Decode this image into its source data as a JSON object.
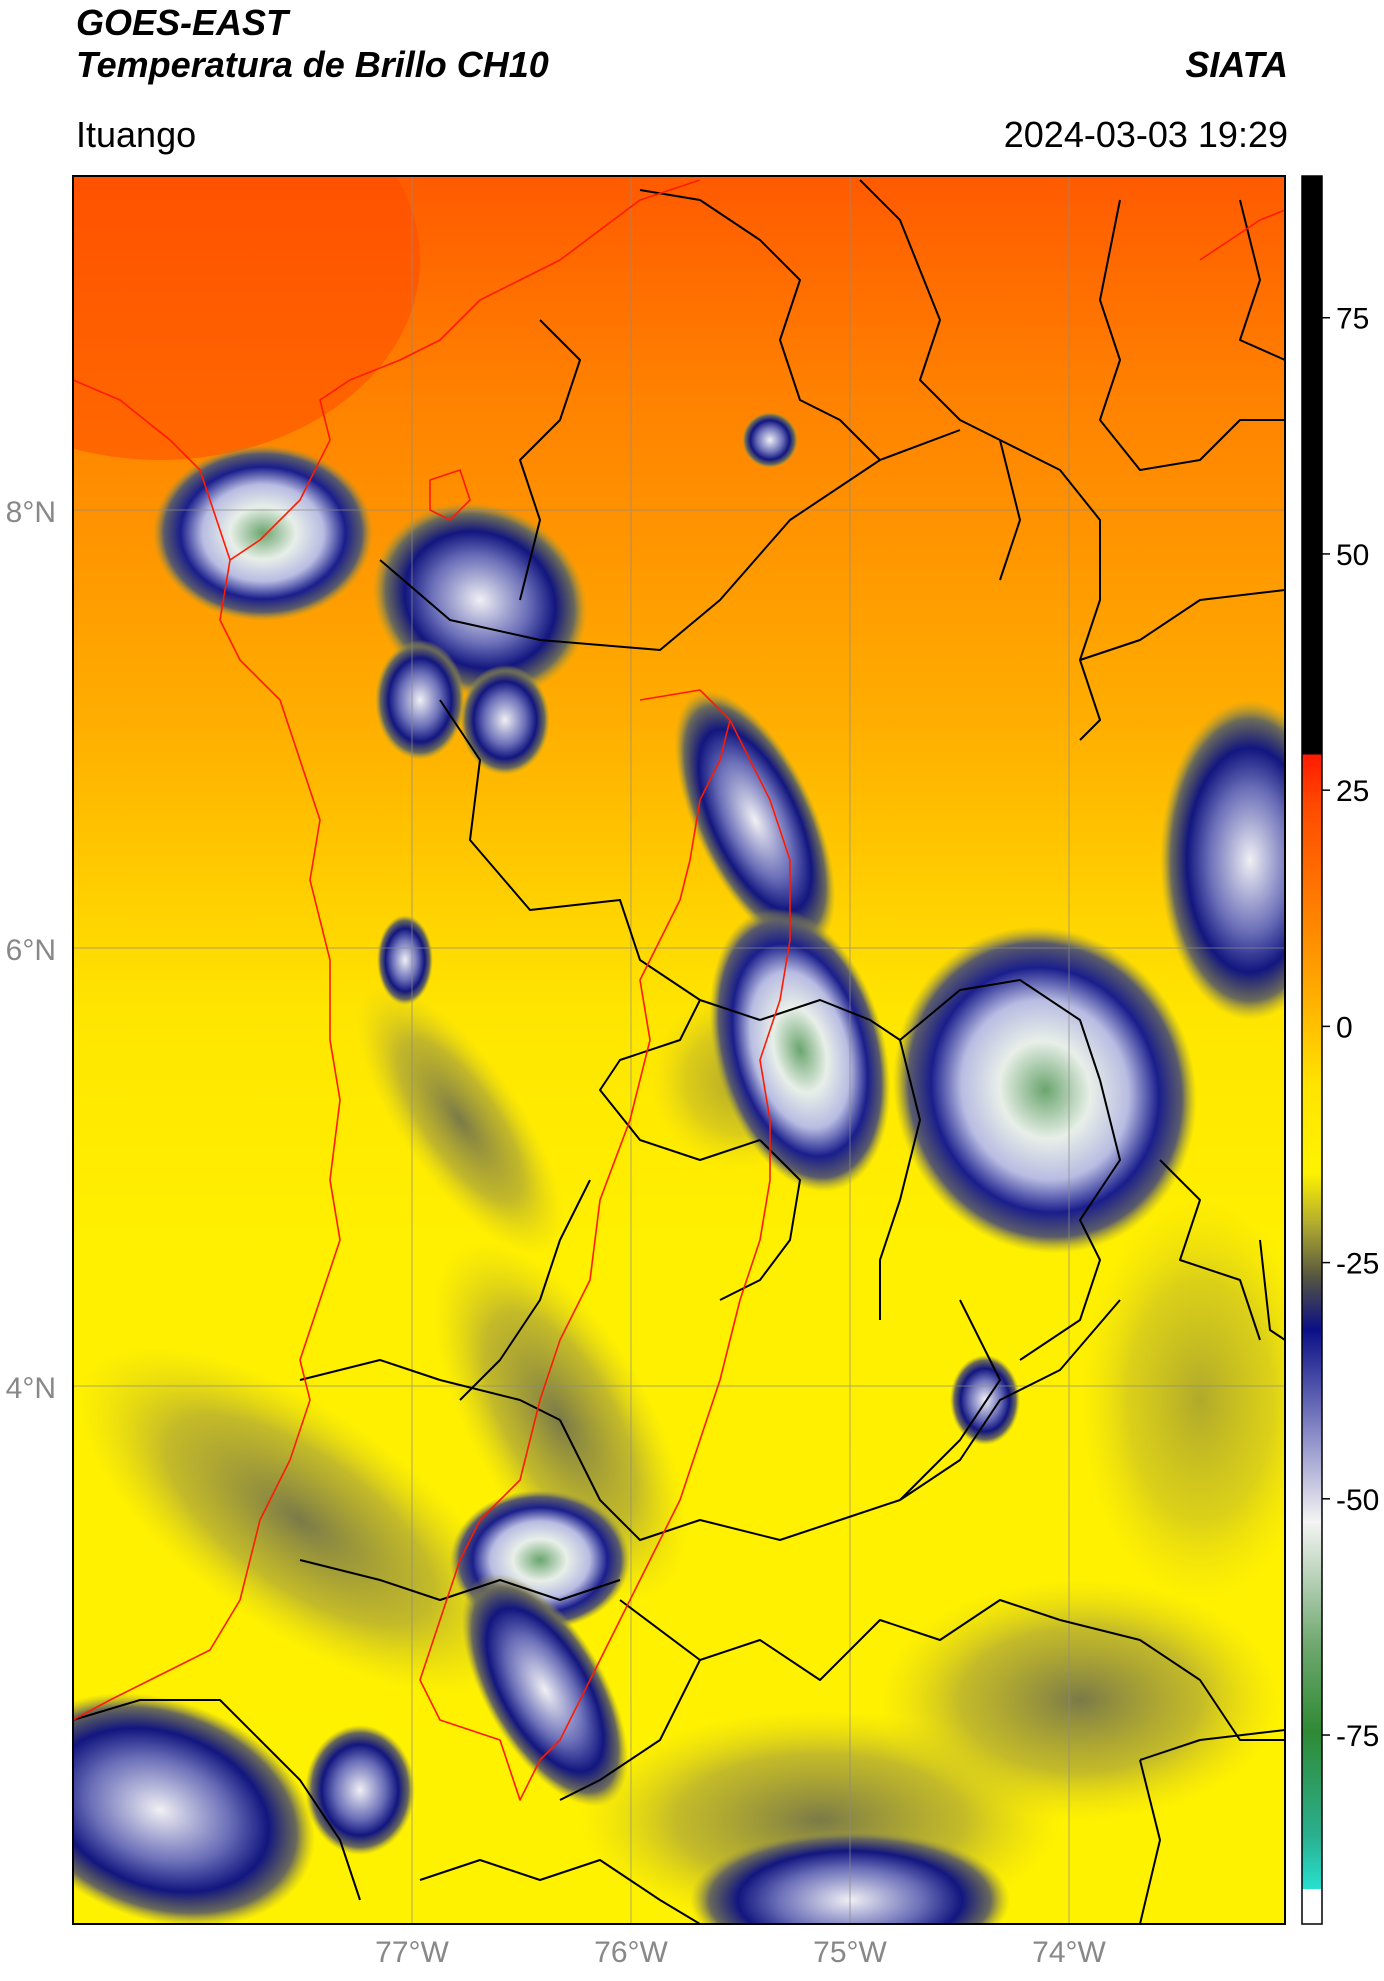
{
  "header": {
    "satellite": "GOES-EAST",
    "product": "Temperatura de Brillo CH10",
    "organization": "SIATA",
    "location": "Ituango",
    "datetime": "2024-03-03 19:29"
  },
  "map": {
    "lat_labels": [
      "8°N",
      "6°N",
      "4°N"
    ],
    "lon_labels": [
      "77°W",
      "76°W",
      "75°W",
      "74°W"
    ],
    "gridlines": true
  },
  "colorbar": {
    "ticks": [
      "75",
      "50",
      "25",
      "0",
      "-25",
      "-50",
      "-75"
    ],
    "tick_values": [
      75,
      50,
      25,
      0,
      -25,
      -50,
      -75
    ],
    "range": [
      -95,
      90
    ],
    "colors": {
      "cyan": "#27e0d0",
      "green": "#2f8a35",
      "white": "#f4f4f4",
      "navy": "#0b0f86",
      "olive": "#8a8a3e",
      "yellow": "#fff300",
      "orange": "#ff8a00",
      "red": "#ff1a00",
      "black": "#000000"
    }
  }
}
